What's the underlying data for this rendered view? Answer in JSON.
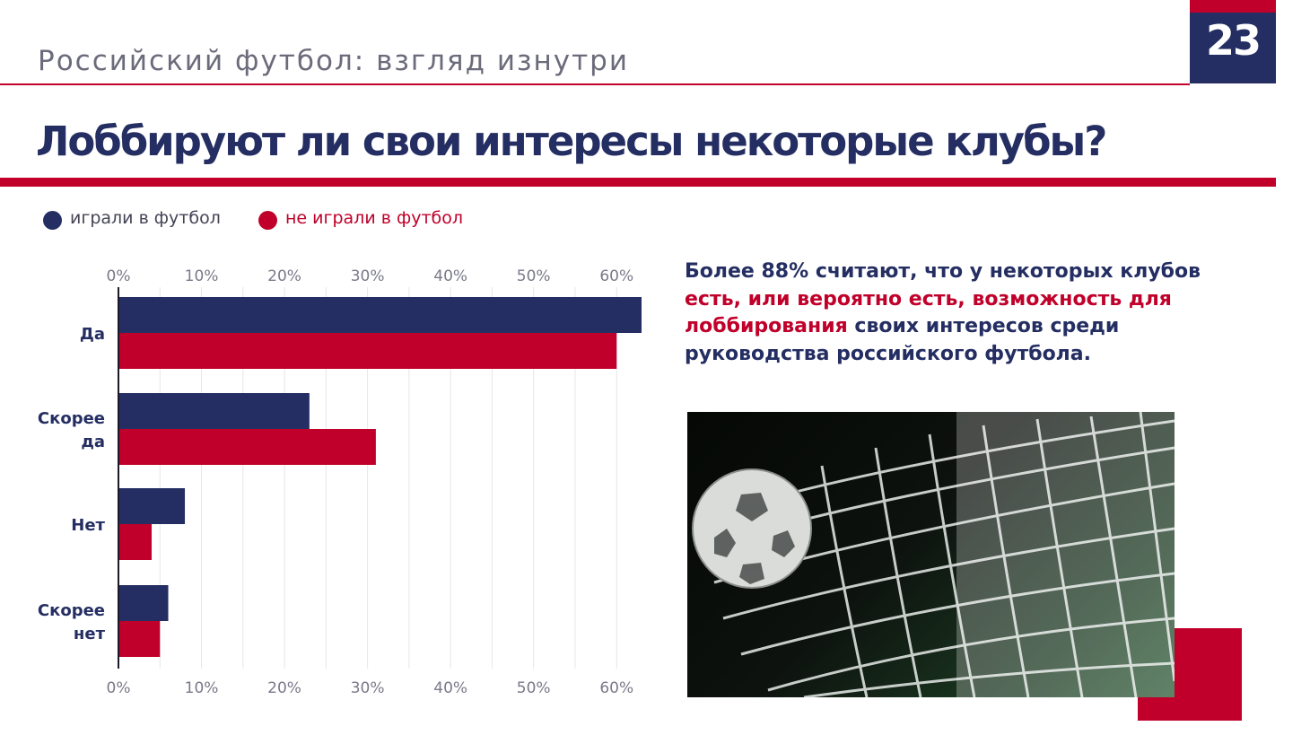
{
  "header": {
    "title": "Российский футбол: взгляд изнутри",
    "page_number": "23"
  },
  "slide_title": "Лоббируют ли свои интересы некоторые клубы?",
  "legend": {
    "items": [
      {
        "label": "играли в футбол",
        "color": "#242e62"
      },
      {
        "label": "не играли в футбол",
        "color": "#c0002a"
      }
    ]
  },
  "summary": {
    "part1": "Более 88% считают, что у некоторых клубов",
    "highlight": "есть, или вероятно есть, возможность для лоббирования",
    "part2": "своих интересов среди руководства российского футбола."
  },
  "colors": {
    "navy": "#242e62",
    "red": "#c0002a",
    "grid": "#e6e6ea"
  },
  "photo": {
    "icon": "football-net-photo"
  },
  "chart_data": {
    "type": "bar",
    "orientation": "horizontal",
    "categories": [
      "Да",
      "Скорее да",
      "Нет",
      "Скорее нет"
    ],
    "series": [
      {
        "name": "играли в футбол",
        "values": [
          63,
          23,
          8,
          6
        ]
      },
      {
        "name": "не играли в футбол",
        "values": [
          60,
          31,
          4,
          5
        ]
      }
    ],
    "xticks": [
      "0%",
      "10%",
      "20%",
      "30%",
      "40%",
      "50%",
      "60%"
    ],
    "xlim": [
      0,
      63
    ],
    "grid": true,
    "legend": "top-left"
  }
}
